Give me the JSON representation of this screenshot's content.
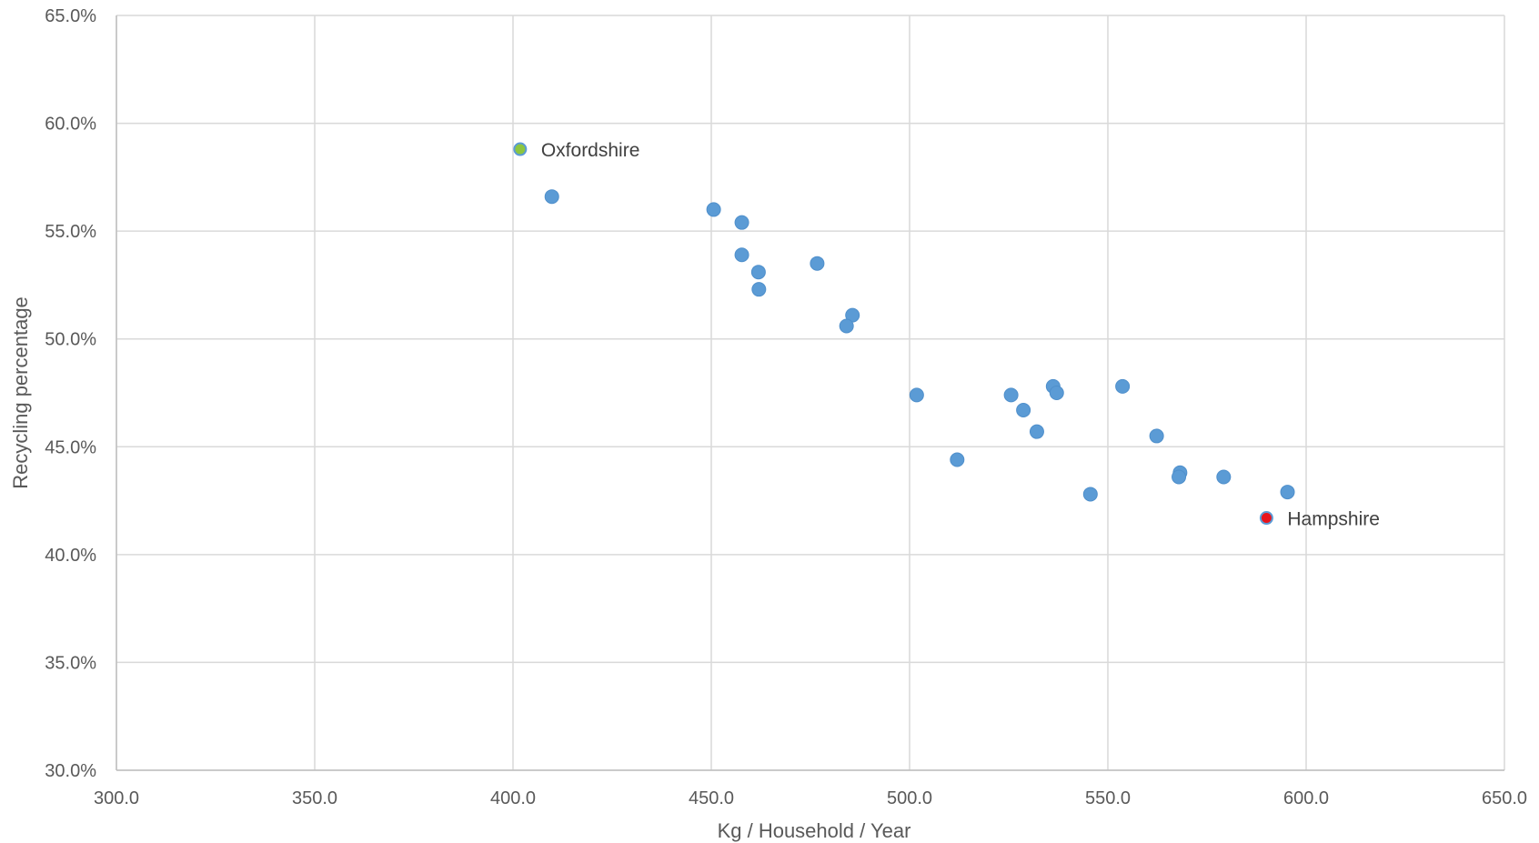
{
  "chart_data": {
    "type": "scatter",
    "xlabel": "Kg / Household / Year",
    "ylabel": "Recycling percentage",
    "xlim": [
      300.0,
      650.0
    ],
    "ylim": [
      30.0,
      65.0
    ],
    "x_ticks": [
      "300.0",
      "350.0",
      "400.0",
      "450.0",
      "500.0",
      "550.0",
      "600.0",
      "650.0"
    ],
    "x_tick_values": [
      300,
      350,
      400,
      450,
      500,
      550,
      600,
      650
    ],
    "y_ticks": [
      "30.0%",
      "35.0%",
      "40.0%",
      "45.0%",
      "50.0%",
      "55.0%",
      "60.0%",
      "65.0%"
    ],
    "y_tick_values": [
      30,
      35,
      40,
      45,
      50,
      55,
      60,
      65
    ],
    "grid": true,
    "legend": "none",
    "colors": {
      "default": "#5b9bd5",
      "oxfordshire": "#8dc63f",
      "hampshire": "#e8141c"
    },
    "points": [
      {
        "x": 401.8,
        "y": 58.8,
        "label": "Oxfordshire",
        "color": "#8dc63f"
      },
      {
        "x": 409.8,
        "y": 56.6
      },
      {
        "x": 450.6,
        "y": 56.0
      },
      {
        "x": 457.7,
        "y": 55.4
      },
      {
        "x": 457.7,
        "y": 53.9
      },
      {
        "x": 461.9,
        "y": 53.1
      },
      {
        "x": 462.0,
        "y": 52.3
      },
      {
        "x": 476.7,
        "y": 53.5
      },
      {
        "x": 485.6,
        "y": 51.1
      },
      {
        "x": 484.1,
        "y": 50.6
      },
      {
        "x": 501.8,
        "y": 47.4
      },
      {
        "x": 512.0,
        "y": 44.4
      },
      {
        "x": 525.6,
        "y": 47.4
      },
      {
        "x": 528.7,
        "y": 46.7
      },
      {
        "x": 532.1,
        "y": 45.7
      },
      {
        "x": 536.2,
        "y": 47.8
      },
      {
        "x": 537.1,
        "y": 47.5
      },
      {
        "x": 545.6,
        "y": 42.8
      },
      {
        "x": 553.7,
        "y": 47.8
      },
      {
        "x": 562.3,
        "y": 45.5
      },
      {
        "x": 568.2,
        "y": 43.8
      },
      {
        "x": 567.9,
        "y": 43.6
      },
      {
        "x": 579.2,
        "y": 43.6
      },
      {
        "x": 590.0,
        "y": 41.7,
        "label": "Hampshire",
        "color": "#e8141c"
      },
      {
        "x": 595.3,
        "y": 42.9
      }
    ]
  }
}
